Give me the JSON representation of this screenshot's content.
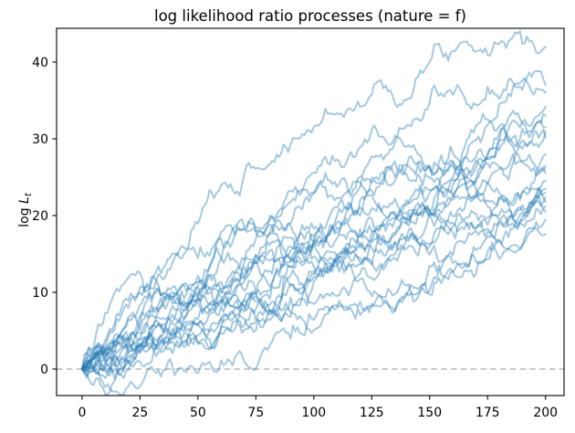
{
  "chart_data": {
    "type": "line",
    "title": "log likelihood ratio processes (nature = f)",
    "xlabel": "",
    "ylabel": {
      "prefix": "log",
      "variable": "L",
      "subscript": "t"
    },
    "xticks": [
      0,
      25,
      50,
      75,
      100,
      125,
      150,
      175,
      200
    ],
    "yticks": [
      0,
      10,
      20,
      30,
      40
    ],
    "xlim": [
      -11,
      208
    ],
    "ylim": [
      -3.45,
      44.4
    ],
    "n_steps": 200,
    "grid": false,
    "legend": "none",
    "line_color": "#1f77b4",
    "line_alpha": 0.4,
    "line_width": 2,
    "noise_sigma": 0.6,
    "value_clip": [
      -3.3,
      44.2
    ],
    "zero_line": {
      "y": 0,
      "color": "#b0b0b0",
      "dash": "6.5 4.3",
      "width": 1.4
    },
    "spine_color": "#000000",
    "paths": [
      {
        "seed": 7,
        "start": 0,
        "end": 42.0
      },
      {
        "seed": 13,
        "start": 0,
        "end": 37.0
      },
      {
        "seed": 21,
        "start": 0,
        "end": 36.0
      },
      {
        "seed": 34,
        "start": 0,
        "end": 34.2
      },
      {
        "seed": 42,
        "start": 0,
        "end": 33.0
      },
      {
        "seed": 55,
        "start": 0,
        "end": 31.5
      },
      {
        "seed": 63,
        "start": 0,
        "end": 31.0
      },
      {
        "seed": 71,
        "start": 0,
        "end": 30.2
      },
      {
        "seed": 88,
        "start": 0,
        "end": 28.0
      },
      {
        "seed": 91,
        "start": 0,
        "end": 26.5
      },
      {
        "seed": 104,
        "start": 0,
        "end": 25.5
      },
      {
        "seed": 117,
        "start": 0,
        "end": 24.5
      },
      {
        "seed": 123,
        "start": 0,
        "end": 23.5
      },
      {
        "seed": 138,
        "start": 0,
        "end": 23.0
      },
      {
        "seed": 145,
        "start": 0,
        "end": 22.4
      },
      {
        "seed": 152,
        "start": 0,
        "end": 21.8
      },
      {
        "seed": 169,
        "start": 0,
        "end": 21.2
      },
      {
        "seed": 174,
        "start": 0,
        "end": 20.5
      },
      {
        "seed": 188,
        "start": 0,
        "end": 19.5
      },
      {
        "seed": 199,
        "start": 0,
        "end": 17.6
      }
    ]
  }
}
